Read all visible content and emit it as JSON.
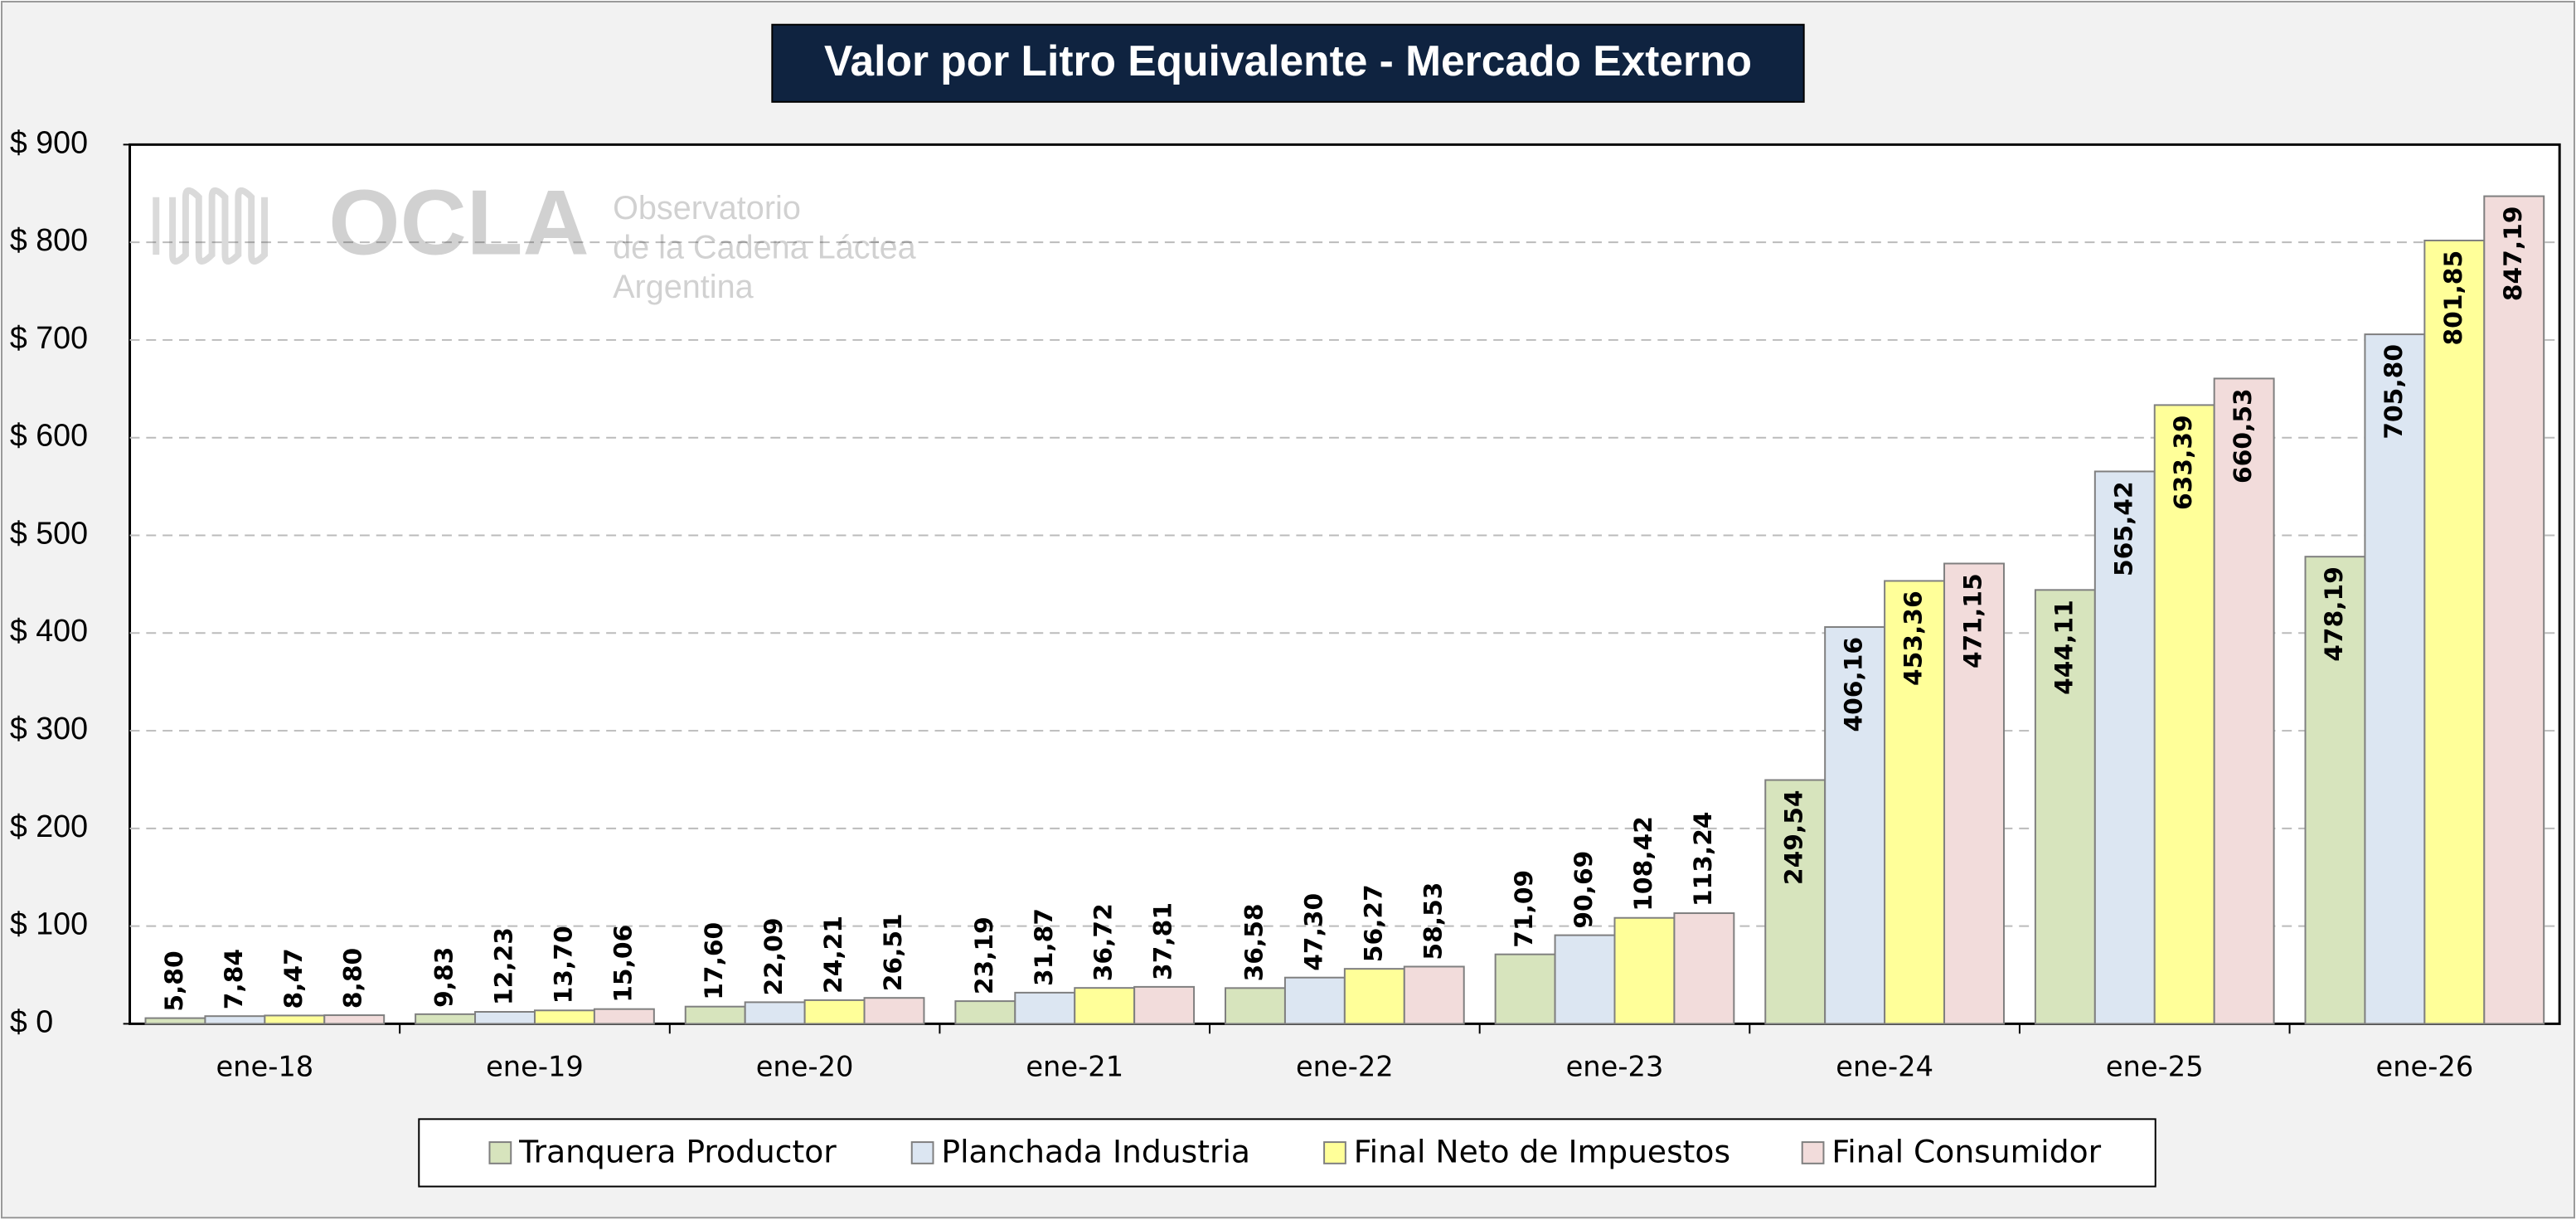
{
  "chart_data": {
    "type": "bar",
    "title": "Valor por Litro Equivalente - Mercado Externo",
    "watermark": {
      "name": "OCLA",
      "lines": [
        "Observatorio",
        "de la Cadena Láctea",
        "Argentina"
      ]
    },
    "categories": [
      "ene-18",
      "ene-19",
      "ene-20",
      "ene-21",
      "ene-22",
      "ene-23",
      "ene-24",
      "ene-25",
      "ene-26"
    ],
    "series": [
      {
        "name": "Tranquera Productor",
        "color": "#d7e4bd",
        "values": [
          5.8,
          9.83,
          17.6,
          23.19,
          36.58,
          71.09,
          249.54,
          444.11,
          478.19
        ],
        "value_labels": [
          "5,80",
          "9,83",
          "17,60",
          "23,19",
          "36,58",
          "71,09",
          "249,54",
          "444,11",
          "478,19"
        ]
      },
      {
        "name": "Planchada Industria",
        "color": "#dce6f2",
        "values": [
          7.84,
          12.23,
          22.09,
          31.87,
          47.3,
          90.69,
          406.16,
          565.42,
          705.8
        ],
        "value_labels": [
          "7,84",
          "12,23",
          "22,09",
          "31,87",
          "47,30",
          "90,69",
          "406,16",
          "565,42",
          "705,80"
        ]
      },
      {
        "name": "Final Neto de Impuestos",
        "color": "#ffff99",
        "values": [
          8.47,
          13.7,
          24.21,
          36.72,
          56.27,
          108.42,
          453.36,
          633.39,
          801.85
        ],
        "value_labels": [
          "8,47",
          "13,70",
          "24,21",
          "36,72",
          "56,27",
          "108,42",
          "453,36",
          "633,39",
          "801,85"
        ]
      },
      {
        "name": "Final Consumidor",
        "color": "#f2dcdb",
        "values": [
          8.8,
          15.06,
          26.51,
          37.81,
          58.53,
          113.24,
          471.15,
          660.53,
          847.19
        ],
        "value_labels": [
          "8,80",
          "15,06",
          "26,51",
          "37,81",
          "58,53",
          "113,24",
          "471,15",
          "660,53",
          "847,19"
        ]
      }
    ],
    "ylim": [
      0,
      900
    ],
    "yticks": [
      {
        "value": 0,
        "label": "$ 0"
      },
      {
        "value": 100,
        "label": "$ 100"
      },
      {
        "value": 200,
        "label": "$ 200"
      },
      {
        "value": 300,
        "label": "$ 300"
      },
      {
        "value": 400,
        "label": "$ 400"
      },
      {
        "value": 500,
        "label": "$ 500"
      },
      {
        "value": 600,
        "label": "$ 600"
      },
      {
        "value": 700,
        "label": "$ 700"
      },
      {
        "value": 800,
        "label": "$ 800"
      },
      {
        "value": 900,
        "label": "$ 900"
      }
    ],
    "grid": true,
    "legend": "bottom"
  }
}
